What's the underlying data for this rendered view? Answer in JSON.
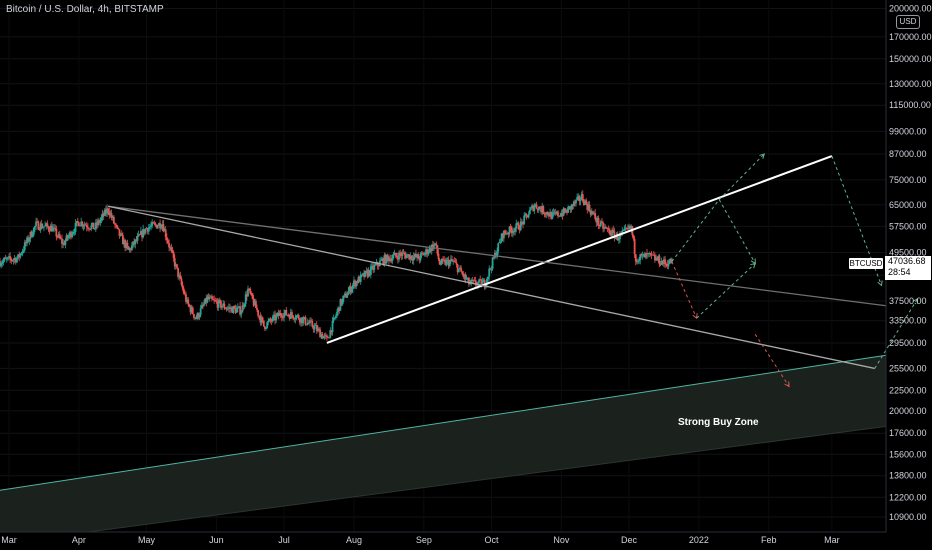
{
  "header": {
    "symbol_title": "Bitcoin / U.S. Dollar, 4h, BITSTAMP",
    "currency": "USD"
  },
  "price_scale": {
    "ticks": [
      "200000.00",
      "170000.00",
      "150000.00",
      "130000.00",
      "115000.00",
      "99000.00",
      "87000.00",
      "75000.00",
      "65000.00",
      "57500.00",
      "49500.00",
      "43500.00",
      "37500.00",
      "33500.00",
      "29500.00",
      "25500.00",
      "22500.00",
      "20000.00",
      "17600.00",
      "15600.00",
      "13800.00",
      "12200.00",
      "10900.00"
    ],
    "ticker_label": "BTCUSD",
    "last_price": "47036.68",
    "countdown": "28:54"
  },
  "time_scale": {
    "labels": [
      "Mar",
      "Apr",
      "May",
      "Jun",
      "Jul",
      "Aug",
      "Sep",
      "Oct",
      "Nov",
      "Dec",
      "2022",
      "Feb",
      "Mar"
    ]
  },
  "annotations": {
    "zone_label": "Strong Buy Zone"
  },
  "colors": {
    "background": "#000000",
    "up": "#26a69a",
    "down": "#ef5350",
    "zone_fill": "#1c231f",
    "zone_edge": "#4fb5a2",
    "trendline": "#ffffff",
    "channel": "#8a8a8a"
  },
  "chart_data": {
    "type": "candlestick",
    "symbol": "BTCUSD",
    "timeframe": "4h",
    "y_scale": "log",
    "ylim": [
      10000,
      210000
    ],
    "xlim": [
      "2021-02-25",
      "2022-03-25"
    ],
    "close_path": [
      [
        "2021-02-25",
        47000
      ],
      [
        "2021-03-05",
        48000
      ],
      [
        "2021-03-13",
        58000
      ],
      [
        "2021-03-20",
        57000
      ],
      [
        "2021-03-25",
        52000
      ],
      [
        "2021-04-01",
        59000
      ],
      [
        "2021-04-08",
        57000
      ],
      [
        "2021-04-14",
        63500
      ],
      [
        "2021-04-18",
        56000
      ],
      [
        "2021-04-23",
        50000
      ],
      [
        "2021-05-01",
        57000
      ],
      [
        "2021-05-08",
        58500
      ],
      [
        "2021-05-12",
        49500
      ],
      [
        "2021-05-19",
        37000
      ],
      [
        "2021-05-23",
        34000
      ],
      [
        "2021-05-28",
        38000
      ],
      [
        "2021-06-06",
        36000
      ],
      [
        "2021-06-12",
        35500
      ],
      [
        "2021-06-15",
        40000
      ],
      [
        "2021-06-22",
        32500
      ],
      [
        "2021-06-30",
        35000
      ],
      [
        "2021-07-06",
        34500
      ],
      [
        "2021-07-14",
        32500
      ],
      [
        "2021-07-20",
        30000
      ],
      [
        "2021-07-26",
        37000
      ],
      [
        "2021-08-01",
        41500
      ],
      [
        "2021-08-07",
        44000
      ],
      [
        "2021-08-14",
        47500
      ],
      [
        "2021-08-22",
        49000
      ],
      [
        "2021-08-30",
        48000
      ],
      [
        "2021-09-06",
        52000
      ],
      [
        "2021-09-08",
        46500
      ],
      [
        "2021-09-14",
        47000
      ],
      [
        "2021-09-21",
        41500
      ],
      [
        "2021-09-28",
        41500
      ],
      [
        "2021-10-06",
        55000
      ],
      [
        "2021-10-14",
        58000
      ],
      [
        "2021-10-20",
        65000
      ],
      [
        "2021-10-28",
        61000
      ],
      [
        "2021-11-03",
        62500
      ],
      [
        "2021-11-10",
        68000
      ],
      [
        "2021-11-18",
        58000
      ],
      [
        "2021-11-26",
        54000
      ],
      [
        "2021-12-02",
        57000
      ],
      [
        "2021-12-04",
        48000
      ],
      [
        "2021-12-10",
        48500
      ],
      [
        "2021-12-17",
        46500
      ],
      [
        "2021-12-20",
        47036
      ]
    ],
    "drawings": [
      {
        "type": "trendline",
        "from": [
          "2021-07-20",
          29500
        ],
        "to": [
          "2022-03-01",
          86000
        ]
      },
      {
        "type": "trendline",
        "from": [
          "2021-04-14",
          64500
        ],
        "to": [
          "2022-03-25",
          36500
        ]
      },
      {
        "type": "trendline",
        "from": [
          "2021-04-14",
          64500
        ],
        "to": [
          "2022-03-20",
          25500
        ]
      },
      {
        "type": "zone",
        "label": "Strong Buy Zone",
        "upper": [
          [
            "2021-02-25",
            12700
          ],
          [
            "2022-03-25",
            27500
          ]
        ],
        "lower": [
          [
            "2021-04-05",
            10000
          ],
          [
            "2022-03-25",
            18300
          ]
        ]
      },
      {
        "type": "projection",
        "color": "red",
        "path": [
          [
            "2021-12-20",
            47000
          ],
          [
            "2021-12-31",
            34000
          ]
        ]
      },
      {
        "type": "projection",
        "color": "green",
        "path": [
          [
            "2021-12-31",
            34000
          ],
          [
            "2022-01-26",
            46500
          ]
        ]
      },
      {
        "type": "projection",
        "color": "green",
        "path": [
          [
            "2021-12-20",
            47000
          ],
          [
            "2022-01-10",
            67000
          ],
          [
            "2022-01-26",
            46500
          ]
        ]
      },
      {
        "type": "projection",
        "color": "green",
        "path": [
          [
            "2022-01-10",
            67000
          ],
          [
            "2022-01-30",
            87000
          ]
        ]
      },
      {
        "type": "projection",
        "color": "green",
        "path": [
          [
            "2022-03-01",
            86000
          ],
          [
            "2022-03-23",
            41000
          ]
        ]
      },
      {
        "type": "projection",
        "color": "red",
        "path": [
          [
            "2022-01-26",
            31000
          ],
          [
            "2022-02-10",
            23000
          ]
        ]
      },
      {
        "type": "projection",
        "color": "green",
        "path": [
          [
            "2022-03-20",
            25500
          ],
          [
            "2022-04-08",
            38000
          ]
        ]
      }
    ]
  }
}
